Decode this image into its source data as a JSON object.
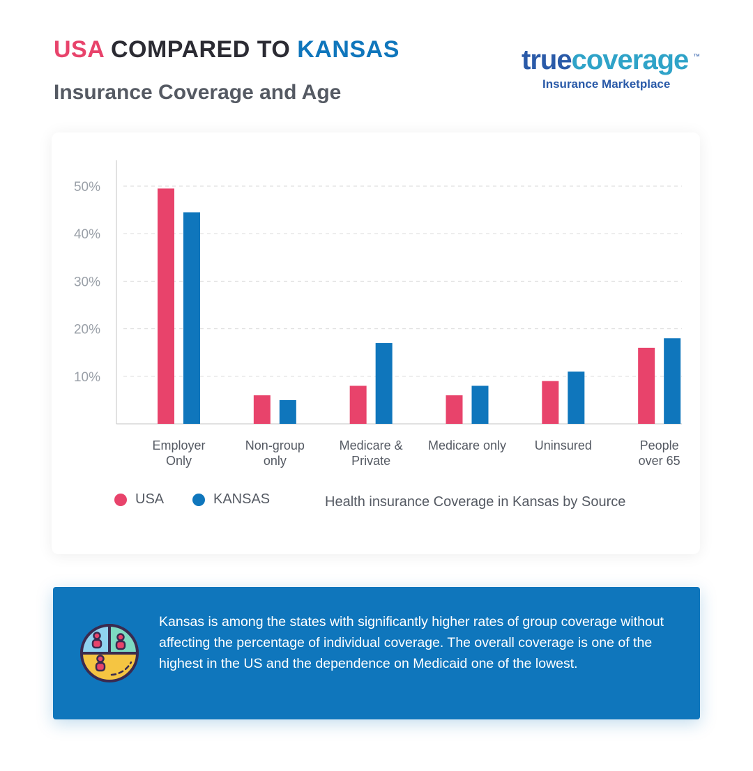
{
  "header": {
    "title_usa": "USA",
    "title_mid": " COMPARED TO ",
    "title_state": "KANSAS",
    "subtitle": "Insurance Coverage and Age"
  },
  "logo": {
    "brand_true": "true",
    "brand_coverage": "coverage",
    "trademark": "™",
    "tagline": "Insurance Marketplace"
  },
  "colors": {
    "usa": "#e8436b",
    "kansas": "#0f76bc",
    "text": "#555a63",
    "grid": "#d9d9d9"
  },
  "chart_data": {
    "type": "bar",
    "categories": [
      [
        "Employer",
        "Only"
      ],
      [
        "Non-group",
        "only"
      ],
      [
        "Medicare &",
        "Private"
      ],
      [
        "Medicare only"
      ],
      [
        "Uninsured"
      ],
      [
        "People",
        "over 65"
      ]
    ],
    "series": [
      {
        "name": "USA",
        "color": "#e8436b",
        "values": [
          49.5,
          6,
          8,
          6,
          9,
          16
        ]
      },
      {
        "name": "KANSAS",
        "color": "#0f76bc",
        "values": [
          44.5,
          5,
          17,
          8,
          11,
          18
        ]
      }
    ],
    "yticks": [
      10,
      20,
      30,
      40,
      50
    ],
    "ytick_labels": [
      "10%",
      "20%",
      "30%",
      "40%",
      "50%"
    ],
    "ylim": [
      0,
      55
    ],
    "grid": true,
    "legend_position": "bottom-left"
  },
  "legend": {
    "usa": "USA",
    "kansas": "KANSAS",
    "caption": "Health insurance Coverage in Kansas by Source"
  },
  "info": {
    "text": "Kansas is among the states with significantly higher rates of group coverage without affecting the percentage of individual coverage. The overall coverage is one of the highest in the US and the dependence on Medicaid one of the lowest.",
    "icon": "pie-people-icon"
  }
}
